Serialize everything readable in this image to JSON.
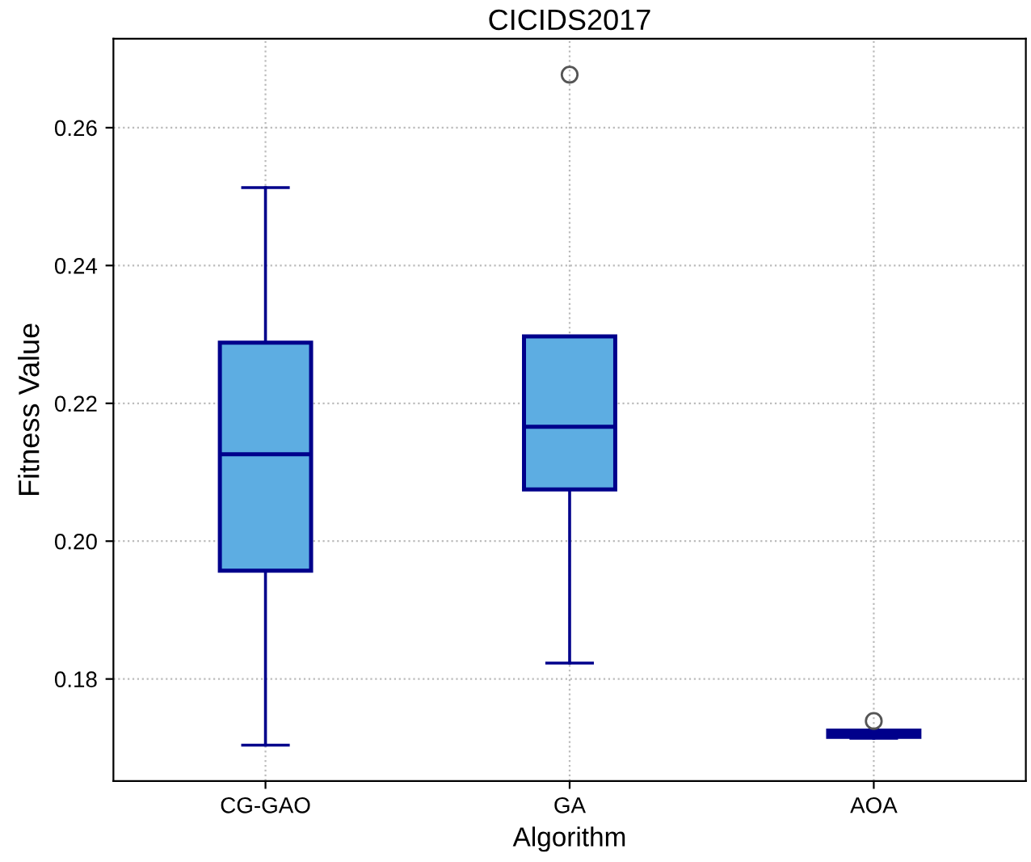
{
  "chart_data": {
    "type": "box",
    "title": "CICIDS2017",
    "xlabel": "Algorithm",
    "ylabel": "Fitness Value",
    "categories": [
      "CG-GAO",
      "GA",
      "AOA"
    ],
    "boxes": [
      {
        "low": 0.1704,
        "q1": 0.1957,
        "median": 0.2126,
        "q3": 0.2288,
        "high": 0.2513
      },
      {
        "low": 0.1823,
        "q1": 0.2075,
        "median": 0.2166,
        "q3": 0.2297,
        "high": 0.2297,
        "outliers": [
          0.2677
        ]
      },
      {
        "low": 0.1714,
        "q1": 0.1716,
        "median": 0.172,
        "q3": 0.1725,
        "high": 0.1726,
        "outliers": [
          0.1739
        ]
      }
    ],
    "color": "#5dade2",
    "ylim": [
      0.1652,
      0.2729
    ],
    "yticks": [
      {
        "value": 0.18,
        "label": "0.18"
      },
      {
        "value": 0.2,
        "label": "0.20"
      },
      {
        "value": 0.22,
        "label": "0.22"
      },
      {
        "value": 0.24,
        "label": "0.24"
      },
      {
        "value": 0.26,
        "label": "0.26"
      }
    ],
    "grid": true
  }
}
